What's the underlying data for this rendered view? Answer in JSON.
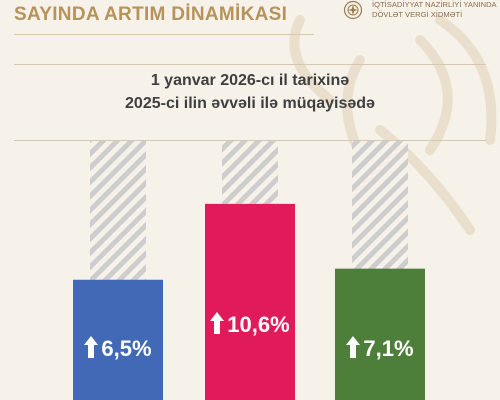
{
  "header": {
    "title": "SAYINDA ARTIM DİNAMİKASI",
    "org_lines": [
      "İQTİSADİYYAT NAZİRLİYİ YANINDA",
      "DÖVLƏT VERGİ XİDMƏTİ"
    ],
    "emblem_icon": "state-emblem-icon"
  },
  "subtitle": {
    "line1": "1 yanvar 2026-cı il tarixinə",
    "line2": "2025-ci ilin əvvəli ilə müqayisədə"
  },
  "chart_data": {
    "type": "bar",
    "title": "",
    "xlabel": "",
    "ylabel": "",
    "ylim": [
      0,
      14
    ],
    "grid": false,
    "legend": "none",
    "values": [
      6.5,
      10.6,
      7.1
    ],
    "labels": [
      "6,5%",
      "10,6%",
      "7,1%"
    ],
    "colors": [
      "#4169b5",
      "#e11a5b",
      "#4e7f3a"
    ],
    "indicator_icon": "arrow-up-icon"
  },
  "colors": {
    "background": "#f6f1e9",
    "accent_gold": "#b5935a",
    "hatch": "#c9c9c9"
  }
}
